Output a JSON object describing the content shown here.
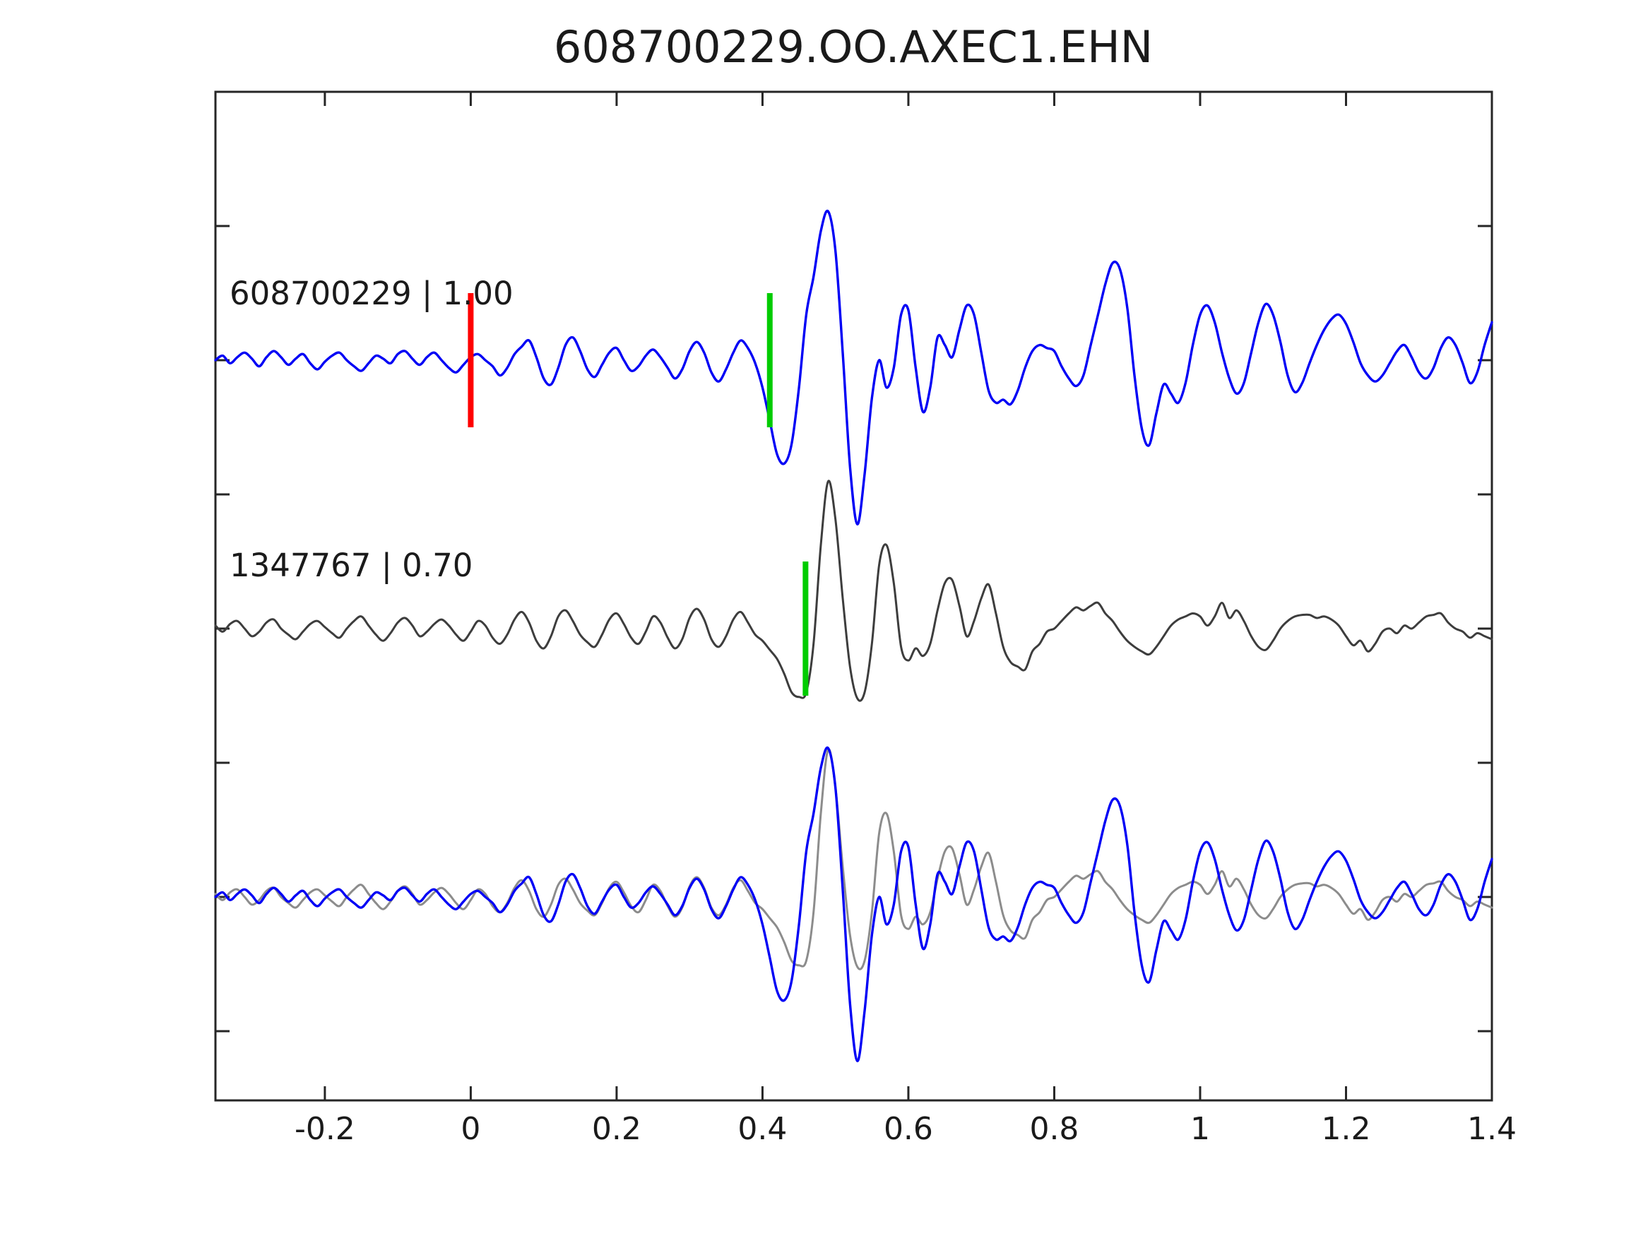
{
  "title": "608700229.OO.AXEC1.EHN",
  "chart_data": {
    "type": "line",
    "title": "608700229.OO.AXEC1.EHN",
    "xlabel": "",
    "ylabel": "",
    "xlim": [
      -0.35,
      1.4
    ],
    "xticks": [
      -0.2,
      0,
      0.2,
      0.4,
      0.6,
      0.8,
      1,
      1.2,
      1.4
    ],
    "xtick_labels": [
      "-0.2",
      "0",
      "0.2",
      "0.4",
      "0.6",
      "0.8",
      "1",
      "1.2",
      "1.4"
    ],
    "yticks": [
      2.5,
      2,
      1.5,
      1,
      0.5,
      0,
      -0.5
    ],
    "grid": false,
    "legend": "none",
    "row_labels": [
      "608700229 | 1.00",
      "1347767 | 0.70"
    ],
    "colors": {
      "detection": "#0000F5",
      "template": "#3d3d3d",
      "template_overlay": "#8c8c8c",
      "origin_marker": "#FF0000",
      "pick_marker": "#00CC00",
      "axis": "#262626"
    },
    "sampling": {
      "t0": -0.35,
      "dt": 0.01,
      "n": 176
    },
    "series": [
      {
        "name": "detection-608700229",
        "color_key": "detection",
        "row": 0,
        "values": [
          0.0,
          0.03,
          -0.02,
          0.02,
          0.05,
          0.01,
          -0.04,
          0.02,
          0.06,
          0.02,
          -0.03,
          0.01,
          0.04,
          -0.02,
          -0.06,
          -0.01,
          0.03,
          0.05,
          0.0,
          -0.04,
          -0.07,
          -0.02,
          0.03,
          0.01,
          -0.02,
          0.04,
          0.06,
          0.01,
          -0.03,
          0.02,
          0.05,
          0.0,
          -0.05,
          -0.08,
          -0.03,
          0.02,
          0.04,
          0.0,
          -0.04,
          -0.1,
          -0.05,
          0.04,
          0.09,
          0.13,
          0.02,
          -0.12,
          -0.16,
          -0.05,
          0.1,
          0.15,
          0.06,
          -0.06,
          -0.11,
          -0.03,
          0.05,
          0.08,
          0.0,
          -0.07,
          -0.04,
          0.03,
          0.07,
          0.02,
          -0.05,
          -0.12,
          -0.06,
          0.06,
          0.12,
          0.05,
          -0.08,
          -0.14,
          -0.06,
          0.05,
          0.13,
          0.08,
          -0.02,
          -0.18,
          -0.4,
          -0.62,
          -0.68,
          -0.55,
          -0.18,
          0.3,
          0.55,
          0.85,
          0.98,
          0.72,
          0.05,
          -0.7,
          -1.08,
          -0.75,
          -0.25,
          0.0,
          -0.18,
          -0.05,
          0.3,
          0.33,
          -0.05,
          -0.34,
          -0.18,
          0.15,
          0.1,
          0.02,
          0.2,
          0.36,
          0.3,
          0.05,
          -0.2,
          -0.28,
          -0.26,
          -0.29,
          -0.2,
          -0.05,
          0.06,
          0.1,
          0.08,
          0.06,
          -0.04,
          -0.12,
          -0.17,
          -0.1,
          0.1,
          0.3,
          0.5,
          0.64,
          0.6,
          0.35,
          -0.1,
          -0.45,
          -0.56,
          -0.35,
          -0.16,
          -0.22,
          -0.28,
          -0.15,
          0.1,
          0.3,
          0.36,
          0.25,
          0.05,
          -0.12,
          -0.22,
          -0.15,
          0.05,
          0.25,
          0.37,
          0.3,
          0.12,
          -0.1,
          -0.21,
          -0.15,
          -0.02,
          0.1,
          0.2,
          0.27,
          0.3,
          0.24,
          0.12,
          -0.02,
          -0.1,
          -0.14,
          -0.1,
          -0.02,
          0.06,
          0.1,
          0.02,
          -0.08,
          -0.12,
          -0.05,
          0.08,
          0.15,
          0.1,
          -0.02,
          -0.15,
          -0.08,
          0.1,
          0.25
        ]
      },
      {
        "name": "template-1347767",
        "color_key": "template",
        "row": 1,
        "values": [
          0.02,
          -0.02,
          0.03,
          0.05,
          0.0,
          -0.05,
          -0.02,
          0.04,
          0.06,
          0.0,
          -0.04,
          -0.07,
          -0.02,
          0.03,
          0.05,
          0.01,
          -0.03,
          -0.06,
          0.0,
          0.05,
          0.08,
          0.02,
          -0.04,
          -0.08,
          -0.03,
          0.04,
          0.07,
          0.02,
          -0.05,
          -0.02,
          0.03,
          0.06,
          0.02,
          -0.04,
          -0.08,
          -0.02,
          0.05,
          0.02,
          -0.06,
          -0.1,
          -0.04,
          0.06,
          0.11,
          0.04,
          -0.08,
          -0.13,
          -0.05,
          0.08,
          0.12,
          0.05,
          -0.04,
          -0.09,
          -0.12,
          -0.04,
          0.06,
          0.1,
          0.03,
          -0.06,
          -0.1,
          -0.02,
          0.08,
          0.04,
          -0.06,
          -0.13,
          -0.07,
          0.07,
          0.13,
          0.06,
          -0.07,
          -0.12,
          -0.05,
          0.06,
          0.11,
          0.04,
          -0.04,
          -0.08,
          -0.14,
          -0.2,
          -0.3,
          -0.42,
          -0.45,
          -0.42,
          -0.1,
          0.55,
          0.97,
          0.72,
          0.2,
          -0.25,
          -0.46,
          -0.42,
          -0.1,
          0.42,
          0.55,
          0.3,
          -0.12,
          -0.21,
          -0.13,
          -0.18,
          -0.1,
          0.12,
          0.3,
          0.32,
          0.15,
          -0.05,
          0.05,
          0.2,
          0.29,
          0.1,
          -0.12,
          -0.22,
          -0.25,
          -0.27,
          -0.15,
          -0.1,
          -0.02,
          0.0,
          0.05,
          0.1,
          0.14,
          0.12,
          0.15,
          0.17,
          0.1,
          0.05,
          -0.02,
          -0.08,
          -0.12,
          -0.15,
          -0.17,
          -0.12,
          -0.05,
          0.02,
          0.06,
          0.08,
          0.1,
          0.08,
          0.02,
          0.08,
          0.17,
          0.07,
          0.12,
          0.05,
          -0.05,
          -0.12,
          -0.14,
          -0.08,
          0.0,
          0.05,
          0.08,
          0.09,
          0.09,
          0.07,
          0.08,
          0.06,
          0.02,
          -0.05,
          -0.11,
          -0.08,
          -0.15,
          -0.1,
          -0.02,
          0.0,
          -0.03,
          0.02,
          0.0,
          0.04,
          0.08,
          0.09,
          0.1,
          0.04,
          0.0,
          -0.02,
          -0.06,
          -0.03,
          -0.05,
          -0.07
        ]
      },
      {
        "name": "overlay-template-1347767",
        "color_key": "template_overlay",
        "row": 2,
        "ref": "template-1347767"
      },
      {
        "name": "overlay-detection-608700229",
        "color_key": "detection",
        "row": 2,
        "ref": "detection-608700229"
      }
    ],
    "markers": [
      {
        "name": "origin-time",
        "t": 0.0,
        "row": 0,
        "color_key": "origin_marker"
      },
      {
        "name": "pick-detection",
        "t": 0.41,
        "row": 0,
        "color_key": "pick_marker"
      },
      {
        "name": "pick-template",
        "t": 0.459,
        "row": 1,
        "color_key": "pick_marker"
      }
    ]
  }
}
